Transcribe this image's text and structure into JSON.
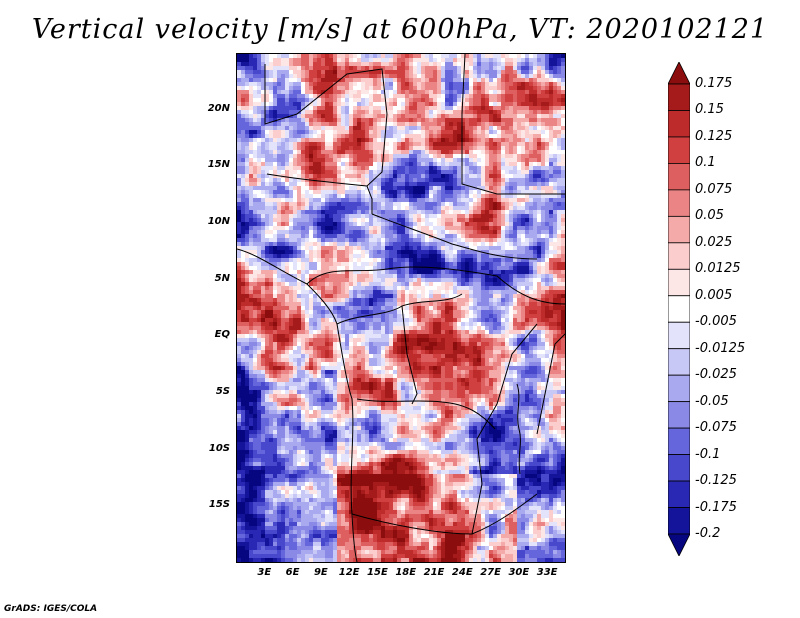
{
  "title": "Vertical velocity [m/s] at 600hPa, VT: 2020102121",
  "footer": "GrADS: IGES/COLA",
  "map": {
    "lon_range_E": [
      0,
      35
    ],
    "lat_range_N": [
      -20,
      25
    ],
    "lat_labels": [
      "20N",
      "15N",
      "10N",
      "5N",
      "EQ",
      "5S",
      "10S",
      "15S"
    ],
    "lat_values": [
      20,
      15,
      10,
      5,
      0,
      -5,
      -10,
      -15
    ],
    "lon_labels": [
      "3E",
      "6E",
      "9E",
      "12E",
      "15E",
      "18E",
      "21E",
      "24E",
      "27E",
      "30E",
      "33E"
    ],
    "lon_values": [
      3,
      6,
      9,
      12,
      15,
      18,
      21,
      24,
      27,
      30,
      33
    ]
  },
  "colorbar": {
    "labels": [
      "0.175",
      "0.15",
      "0.125",
      "0.1",
      "0.075",
      "0.05",
      "0.025",
      "0.0125",
      "0.005",
      "-0.005",
      "-0.0125",
      "-0.025",
      "-0.05",
      "-0.075",
      "-0.1",
      "-0.125",
      "-0.175",
      "-0.2"
    ],
    "colors": [
      "#8b0d0d",
      "#a51a1a",
      "#bd2b2b",
      "#d04040",
      "#de5f5f",
      "#eb8585",
      "#f5aaaa",
      "#fbcdcd",
      "#fde6e6",
      "#ffffff",
      "#e3e3fb",
      "#c8c8f6",
      "#a9a9ef",
      "#8a8ae6",
      "#6666dc",
      "#4848cc",
      "#2828b5",
      "#14149a",
      "#060680"
    ]
  }
}
